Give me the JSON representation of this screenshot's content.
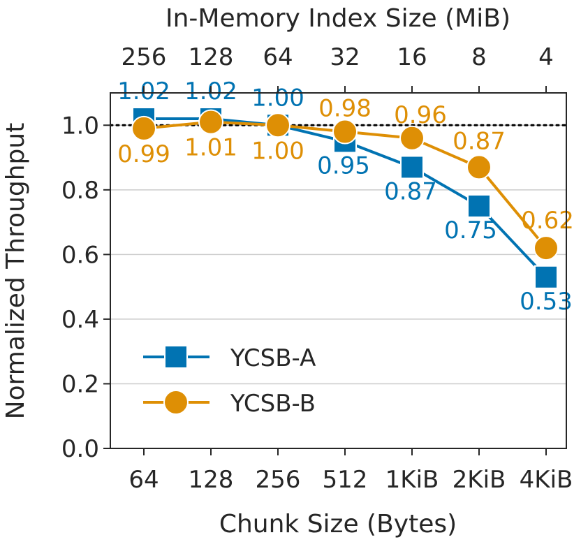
{
  "chart_data": {
    "type": "line",
    "xlabel": "Chunk Size (Bytes)",
    "ylabel": "Normalized Throughput",
    "top_xlabel": "In-Memory Index Size (MiB)",
    "categories": [
      "64",
      "128",
      "256",
      "512",
      "1KiB",
      "2KiB",
      "4KiB"
    ],
    "top_categories": [
      "256",
      "128",
      "64",
      "32",
      "16",
      "8",
      "4"
    ],
    "yticks": [
      "0.0",
      "0.2",
      "0.4",
      "0.6",
      "0.8",
      "1.0"
    ],
    "ylim": [
      0,
      1.1
    ],
    "grid": true,
    "reference_line": 1.0,
    "legend_position": "lower-left",
    "series": [
      {
        "name": "YCSB-A",
        "marker": "square",
        "color": "#0173b2",
        "values": [
          1.02,
          1.02,
          1.0,
          0.95,
          0.87,
          0.75,
          0.53
        ],
        "labels": [
          "1.02",
          "1.02",
          "1.00",
          "0.95",
          "0.87",
          "0.75",
          "0.53"
        ]
      },
      {
        "name": "YCSB-B",
        "marker": "circle",
        "color": "#de8f05",
        "values": [
          0.99,
          1.01,
          1.0,
          0.98,
          0.96,
          0.87,
          0.62
        ],
        "labels": [
          "0.99",
          "1.01",
          "1.00",
          "0.98",
          "0.96",
          "0.87",
          "0.62"
        ]
      }
    ]
  }
}
